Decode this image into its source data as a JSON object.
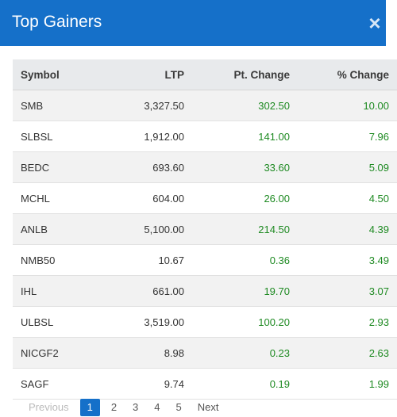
{
  "modal": {
    "title": "Top Gainers",
    "close_glyph": "×"
  },
  "table": {
    "headers": {
      "symbol": "Symbol",
      "ltp": "LTP",
      "pt_change": "Pt. Change",
      "pct_change": "% Change"
    },
    "rows": [
      {
        "symbol": "SMB",
        "ltp": "3,327.50",
        "pt_change": "302.50",
        "pct_change": "10.00"
      },
      {
        "symbol": "SLBSL",
        "ltp": "1,912.00",
        "pt_change": "141.00",
        "pct_change": "7.96"
      },
      {
        "symbol": "BEDC",
        "ltp": "693.60",
        "pt_change": "33.60",
        "pct_change": "5.09"
      },
      {
        "symbol": "MCHL",
        "ltp": "604.00",
        "pt_change": "26.00",
        "pct_change": "4.50"
      },
      {
        "symbol": "ANLB",
        "ltp": "5,100.00",
        "pt_change": "214.50",
        "pct_change": "4.39"
      },
      {
        "symbol": "NMB50",
        "ltp": "10.67",
        "pt_change": "0.36",
        "pct_change": "3.49"
      },
      {
        "symbol": "IHL",
        "ltp": "661.00",
        "pt_change": "19.70",
        "pct_change": "3.07"
      },
      {
        "symbol": "ULBSL",
        "ltp": "3,519.00",
        "pt_change": "100.20",
        "pct_change": "2.93"
      },
      {
        "symbol": "NICGF2",
        "ltp": "8.98",
        "pt_change": "0.23",
        "pct_change": "2.63"
      },
      {
        "symbol": "SAGF",
        "ltp": "9.74",
        "pt_change": "0.19",
        "pct_change": "1.99"
      }
    ]
  },
  "pagination": {
    "previous": "Previous",
    "pages": [
      "1",
      "2",
      "3",
      "4",
      "5"
    ],
    "active_page": "1",
    "next": "Next"
  },
  "colors": {
    "header_bg": "#1570c9",
    "positive": "#1e8a22",
    "active_page_bg": "#1570c9"
  }
}
